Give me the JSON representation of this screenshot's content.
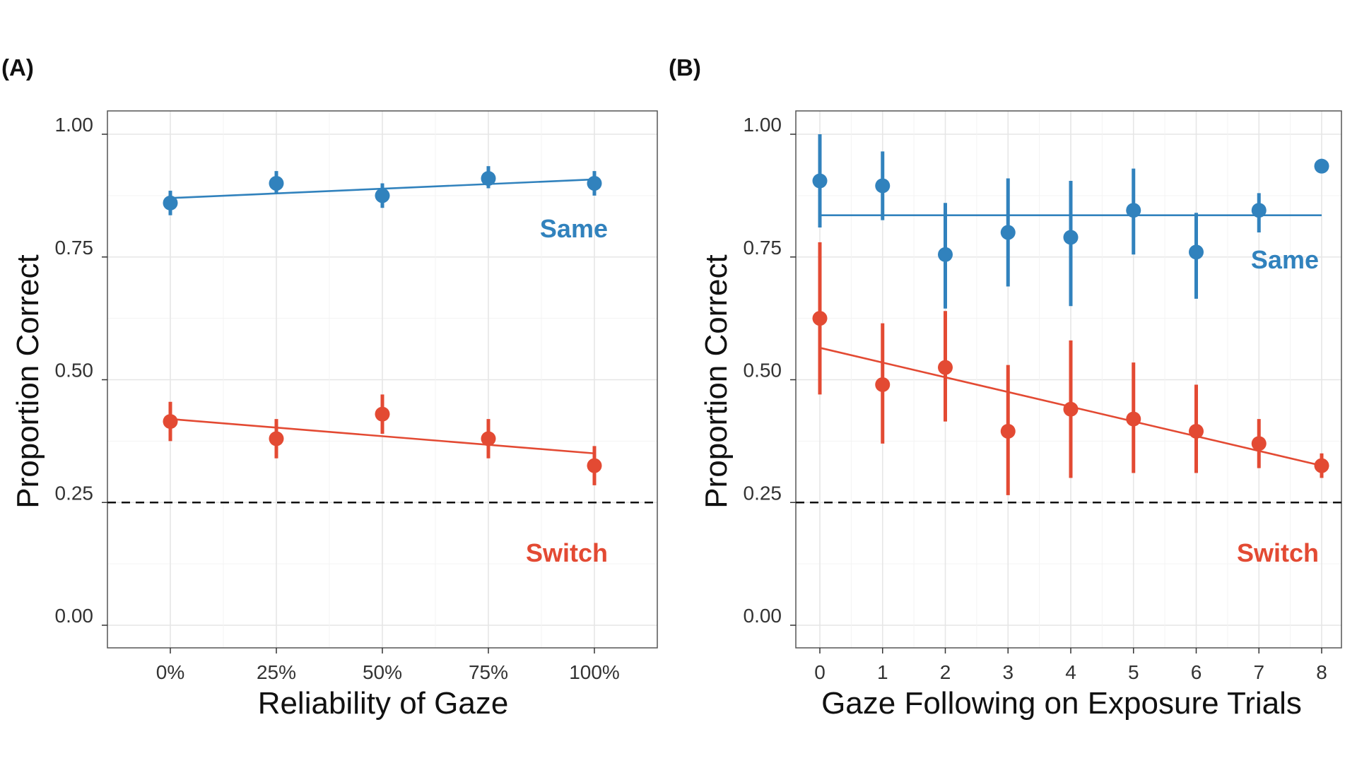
{
  "panels": [
    {
      "letter": "(A)",
      "xlabel": "Reliability of Gaze",
      "ylabel": "Proportion Correct",
      "yticks": [
        "0.00",
        "0.25",
        "0.50",
        "0.75",
        "1.00"
      ],
      "xticks": [
        "0%",
        "25%",
        "50%",
        "75%",
        "100%"
      ]
    },
    {
      "letter": "(B)",
      "xlabel": "Gaze Following on Exposure Trials",
      "ylabel": "Proportion Correct",
      "yticks": [
        "0.00",
        "0.25",
        "0.50",
        "0.75",
        "1.00"
      ],
      "xticks": [
        "0",
        "1",
        "2",
        "3",
        "4",
        "5",
        "6",
        "7",
        "8"
      ]
    }
  ],
  "colors": {
    "same": "#3182bd",
    "switch": "#e34a33"
  },
  "chart_data": [
    {
      "type": "scatter",
      "title": "",
      "xlabel": "Reliability of Gaze",
      "ylabel": "Proportion Correct",
      "categories": [
        "0%",
        "25%",
        "50%",
        "75%",
        "100%"
      ],
      "ylim": [
        0,
        1
      ],
      "grid": true,
      "reference_line": {
        "y": 0.25,
        "style": "dashed"
      },
      "series": [
        {
          "name": "Same",
          "color": "#3182bd",
          "values": [
            0.86,
            0.9,
            0.875,
            0.91,
            0.9
          ],
          "ci_low": [
            0.835,
            0.88,
            0.85,
            0.89,
            0.875
          ],
          "ci_high": [
            0.885,
            0.925,
            0.9,
            0.935,
            0.925
          ],
          "fit": [
            0.87,
            0.908
          ]
        },
        {
          "name": "Switch",
          "color": "#e34a33",
          "values": [
            0.415,
            0.38,
            0.43,
            0.38,
            0.325
          ],
          "ci_low": [
            0.375,
            0.34,
            0.39,
            0.34,
            0.285
          ],
          "ci_high": [
            0.455,
            0.42,
            0.47,
            0.42,
            0.365
          ],
          "fit": [
            0.42,
            0.35
          ]
        }
      ]
    },
    {
      "type": "scatter",
      "title": "",
      "xlabel": "Gaze Following on Exposure Trials",
      "ylabel": "Proportion Correct",
      "x": [
        0,
        1,
        2,
        3,
        4,
        5,
        6,
        7,
        8
      ],
      "xlim": [
        -0.4,
        9.0
      ],
      "ylim": [
        0,
        1
      ],
      "grid": true,
      "reference_line": {
        "y": 0.25,
        "style": "dashed"
      },
      "series": [
        {
          "name": "Same",
          "color": "#3182bd",
          "values": [
            0.905,
            0.895,
            0.755,
            0.8,
            0.79,
            0.845,
            0.76,
            0.845,
            0.935
          ],
          "ci_low": [
            0.81,
            0.825,
            0.645,
            0.69,
            0.65,
            0.755,
            0.665,
            0.8,
            null
          ],
          "ci_high": [
            1.0,
            0.965,
            0.86,
            0.91,
            0.905,
            0.93,
            0.84,
            0.88,
            null
          ],
          "fit": [
            0.835,
            0.835
          ]
        },
        {
          "name": "Switch",
          "color": "#e34a33",
          "values": [
            0.625,
            0.49,
            0.525,
            0.395,
            0.44,
            0.42,
            0.395,
            0.37,
            0.325
          ],
          "ci_low": [
            0.47,
            0.37,
            0.415,
            0.265,
            0.3,
            0.31,
            0.31,
            0.32,
            0.3
          ],
          "ci_high": [
            0.78,
            0.615,
            0.64,
            0.53,
            0.58,
            0.535,
            0.49,
            0.42,
            0.35
          ],
          "fit": [
            0.565,
            0.325
          ]
        }
      ]
    }
  ]
}
